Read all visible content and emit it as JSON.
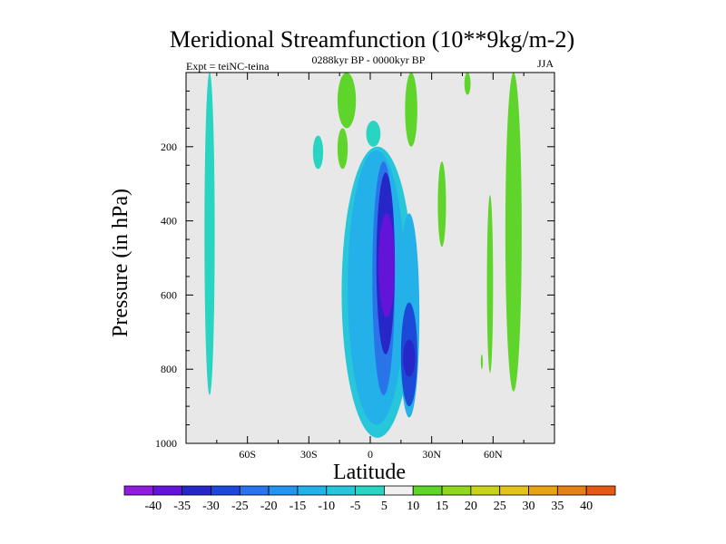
{
  "chart_data": {
    "type": "heatmap",
    "title": "Meridional Streamfunction (10**9kg/m-2)",
    "subtitle": "0288kyr BP - 0000kyr BP",
    "left_annotation": "Expt = teiNC-teina",
    "right_annotation": "JJA",
    "xlabel": "Latitude",
    "ylabel": "Pressure (in hPa)",
    "xlim": [
      -90,
      90
    ],
    "ylim": [
      0,
      1000
    ],
    "y_inverted": true,
    "x_ticks": [
      {
        "value": -60,
        "label": "60S"
      },
      {
        "value": -30,
        "label": "30S"
      },
      {
        "value": 0,
        "label": "0"
      },
      {
        "value": 30,
        "label": "30N"
      },
      {
        "value": 60,
        "label": "60N"
      }
    ],
    "y_ticks": [
      {
        "value": 200,
        "label": "200"
      },
      {
        "value": 400,
        "label": "400"
      },
      {
        "value": 600,
        "label": "600"
      },
      {
        "value": 800,
        "label": "800"
      },
      {
        "value": 1000,
        "label": "1000"
      }
    ],
    "background_color": "#e8e8e8",
    "colorbar": {
      "levels": [
        "-40",
        "-35",
        "-30",
        "-25",
        "-20",
        "-15",
        "-10",
        "-5",
        "5",
        "10",
        "15",
        "20",
        "25",
        "30",
        "35",
        "40"
      ],
      "colors": [
        "#8f1ddb",
        "#6414d8",
        "#2727c8",
        "#1d49d8",
        "#2a74ea",
        "#2594ee",
        "#24b0e8",
        "#27c6da",
        "#29d4c2",
        "#f0f0f0",
        "#5fd52c",
        "#91d61f",
        "#c8d31c",
        "#e4c31a",
        "#e7a314",
        "#e4801a",
        "#e25a14"
      ]
    },
    "regions": [
      {
        "name": "tropical-core",
        "level": "-40",
        "lat": [
          4,
          12
        ],
        "p": [
          380,
          660
        ],
        "color": "#6414d8"
      },
      {
        "name": "tropical-inner",
        "level": "-30",
        "lat": [
          3,
          12
        ],
        "p": [
          270,
          760
        ],
        "color": "#2727c8"
      },
      {
        "name": "tropical-mid",
        "level": "-20",
        "lat": [
          1,
          12
        ],
        "p": [
          240,
          870
        ],
        "color": "#2a74ea"
      },
      {
        "name": "tropical-outer",
        "level": "-10",
        "lat": [
          -11,
          17
        ],
        "p": [
          210,
          950
        ],
        "color": "#24b0e8"
      },
      {
        "name": "tropical-edge",
        "level": "-5",
        "lat": [
          -14,
          21
        ],
        "p": [
          200,
          985
        ],
        "color": "#27c6da"
      },
      {
        "name": "north-lobe-core",
        "level": "-30",
        "lat": [
          16,
          22
        ],
        "p": [
          720,
          820
        ],
        "color": "#2727c8"
      },
      {
        "name": "north-lobe",
        "level": "-20",
        "lat": [
          15,
          23
        ],
        "p": [
          620,
          900
        ],
        "color": "#1d49d8"
      },
      {
        "name": "north-lobe-outer",
        "level": "-10",
        "lat": [
          14,
          24
        ],
        "p": [
          380,
          930
        ],
        "color": "#24b0e8"
      },
      {
        "name": "south-column",
        "level": "-5",
        "lat": [
          -81,
          -76
        ],
        "p": [
          0,
          870
        ],
        "color": "#29d4c2"
      },
      {
        "name": "south-patch",
        "level": "-5",
        "lat": [
          -28,
          -23
        ],
        "p": [
          170,
          260
        ],
        "color": "#29d4c2"
      },
      {
        "name": "upper-patch",
        "level": "-5",
        "lat": [
          -2,
          5
        ],
        "p": [
          130,
          200
        ],
        "color": "#29d4c2"
      },
      {
        "name": "nh-column-a",
        "level": "5",
        "lat": [
          -16,
          -7
        ],
        "p": [
          0,
          150
        ],
        "color": "#5fd52c"
      },
      {
        "name": "nh-column-a-lower",
        "level": "5",
        "lat": [
          -16,
          -11
        ],
        "p": [
          150,
          260
        ],
        "color": "#5fd52c"
      },
      {
        "name": "nh-column-b",
        "level": "5",
        "lat": [
          17,
          23
        ],
        "p": [
          0,
          200
        ],
        "color": "#5fd52c"
      },
      {
        "name": "nh-column-c",
        "level": "5",
        "lat": [
          33,
          37
        ],
        "p": [
          240,
          470
        ],
        "color": "#5fd52c"
      },
      {
        "name": "nh-column-d",
        "level": "5",
        "lat": [
          46,
          49
        ],
        "p": [
          0,
          60
        ],
        "color": "#5fd52c"
      },
      {
        "name": "nh-column-e",
        "level": "5",
        "lat": [
          57,
          60
        ],
        "p": [
          330,
          810
        ],
        "color": "#5fd52c"
      },
      {
        "name": "nh-column-f",
        "level": "5",
        "lat": [
          66,
          74
        ],
        "p": [
          0,
          860
        ],
        "color": "#5fd52c"
      },
      {
        "name": "nh-speck",
        "level": "5",
        "lat": [
          54,
          55
        ],
        "p": [
          760,
          800
        ],
        "color": "#5fd52c"
      }
    ]
  }
}
